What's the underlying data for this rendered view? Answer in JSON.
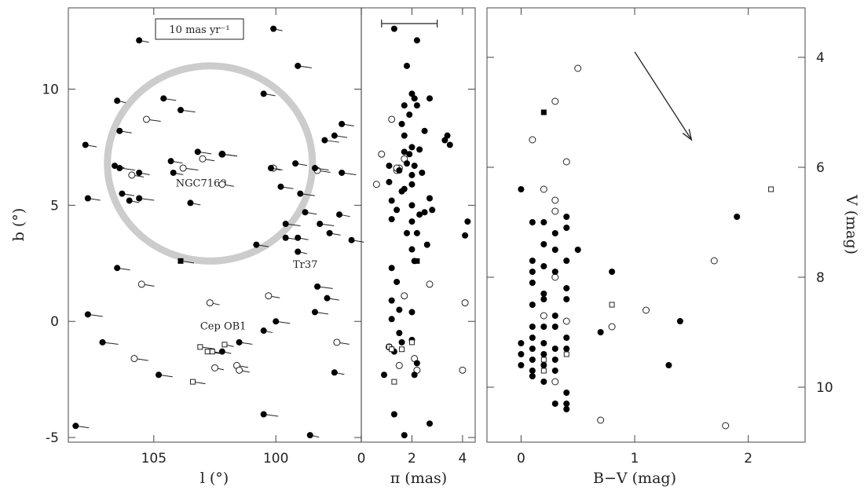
{
  "chart_data": [
    {
      "type": "scatter",
      "panel": "sky",
      "xlabel": "l (°)",
      "ylabel": "b (°)",
      "xlim": [
        108.5,
        96.5
      ],
      "ylim": [
        -5.2,
        13.5
      ],
      "xticks": [
        105,
        100
      ],
      "yticks": [
        -5,
        0,
        5,
        10
      ],
      "scale_bar_label": "10 mas yr⁻¹",
      "circle": {
        "l": 102.7,
        "b": 6.8,
        "r": 4.2
      },
      "annotations": [
        {
          "text": "NGC7160",
          "l": 104.1,
          "b": 5.8
        },
        {
          "text": "Tr37",
          "l": 99.3,
          "b": 2.3
        },
        {
          "text": "Cep OB1",
          "l": 103.1,
          "b": -0.35
        }
      ],
      "filled_circles": [
        [
          105.6,
          12.1
        ],
        [
          100.1,
          12.6
        ],
        [
          99.1,
          11.0
        ],
        [
          106.5,
          9.5
        ],
        [
          104.6,
          9.6
        ],
        [
          103.9,
          9.1
        ],
        [
          100.5,
          9.8
        ],
        [
          106.4,
          8.2
        ],
        [
          107.8,
          7.6
        ],
        [
          98.0,
          7.8
        ],
        [
          97.3,
          8.5
        ],
        [
          97.6,
          8.0
        ],
        [
          103.2,
          7.3
        ],
        [
          104.3,
          6.9
        ],
        [
          102.2,
          7.2
        ],
        [
          106.6,
          6.7
        ],
        [
          106.4,
          6.6
        ],
        [
          105.6,
          6.4
        ],
        [
          104.2,
          6.4
        ],
        [
          100.2,
          6.6
        ],
        [
          99.2,
          6.8
        ],
        [
          98.4,
          6.6
        ],
        [
          97.3,
          6.4
        ],
        [
          107.7,
          5.3
        ],
        [
          106.3,
          5.5
        ],
        [
          106.0,
          5.2
        ],
        [
          105.6,
          5.3
        ],
        [
          103.5,
          5.1
        ],
        [
          99.8,
          5.8
        ],
        [
          99.0,
          5.5
        ],
        [
          97.4,
          4.6
        ],
        [
          97.8,
          3.8
        ],
        [
          96.9,
          3.5
        ],
        [
          98.8,
          4.7
        ],
        [
          98.2,
          4.2
        ],
        [
          99.6,
          4.2
        ],
        [
          99.6,
          3.6
        ],
        [
          99.1,
          3.6
        ],
        [
          99.1,
          3.0
        ],
        [
          100.8,
          3.3
        ],
        [
          106.5,
          2.3
        ],
        [
          98.3,
          1.5
        ],
        [
          97.9,
          1.0
        ],
        [
          107.7,
          0.3
        ],
        [
          100.0,
          0.0
        ],
        [
          98.4,
          0.4
        ],
        [
          107.1,
          -0.9
        ],
        [
          100.5,
          -0.4
        ],
        [
          101.5,
          -0.9
        ],
        [
          102.2,
          -1.3
        ],
        [
          97.6,
          -2.2
        ],
        [
          104.8,
          -2.3
        ],
        [
          100.5,
          -4.0
        ],
        [
          108.2,
          -4.5
        ],
        [
          98.6,
          -4.9
        ]
      ],
      "open_circles": [
        [
          105.3,
          8.7
        ],
        [
          105.9,
          6.3
        ],
        [
          103.8,
          6.6
        ],
        [
          102.2,
          7.2
        ],
        [
          103.0,
          7.0
        ],
        [
          100.1,
          6.6
        ],
        [
          98.3,
          6.5
        ],
        [
          102.2,
          5.9
        ],
        [
          105.5,
          1.6
        ],
        [
          102.7,
          0.8
        ],
        [
          100.3,
          1.1
        ],
        [
          97.5,
          -0.9
        ],
        [
          105.8,
          -1.6
        ],
        [
          101.6,
          -1.9
        ],
        [
          102.5,
          -2.0
        ],
        [
          101.5,
          -2.1
        ]
      ],
      "filled_squares": [
        [
          103.9,
          2.6
        ]
      ],
      "open_squares": [
        [
          103.1,
          -1.1
        ],
        [
          102.8,
          -1.3
        ],
        [
          102.6,
          -1.3
        ],
        [
          102.1,
          -1.0
        ],
        [
          103.4,
          -2.6
        ]
      ]
    },
    {
      "type": "scatter",
      "panel": "parallax",
      "xlabel": "π (mas)",
      "xlim": [
        0,
        4.5
      ],
      "xticks": [
        0,
        2,
        4
      ],
      "errorbar": [
        0.8,
        3.0
      ],
      "filled_circles": [
        [
          1.3,
          12.6
        ],
        [
          2.2,
          12.1
        ],
        [
          1.8,
          11.0
        ],
        [
          2.0,
          9.8
        ],
        [
          2.1,
          9.6
        ],
        [
          2.7,
          9.6
        ],
        [
          1.7,
          9.3
        ],
        [
          2.2,
          9.3
        ],
        [
          1.9,
          8.9
        ],
        [
          1.6,
          8.5
        ],
        [
          2.5,
          8.2
        ],
        [
          1.7,
          8.0
        ],
        [
          2.0,
          7.5
        ],
        [
          3.3,
          7.8
        ],
        [
          3.4,
          8.0
        ],
        [
          3.5,
          7.6
        ],
        [
          1.9,
          7.2
        ],
        [
          2.3,
          7.4
        ],
        [
          1.7,
          7.3
        ],
        [
          1.8,
          6.8
        ],
        [
          1.1,
          6.7
        ],
        [
          2.4,
          6.4
        ],
        [
          2.1,
          6.7
        ],
        [
          2.0,
          6.3
        ],
        [
          1.5,
          6.5
        ],
        [
          1.1,
          6.0
        ],
        [
          1.7,
          5.7
        ],
        [
          2.0,
          5.9
        ],
        [
          1.6,
          5.6
        ],
        [
          1.2,
          5.2
        ],
        [
          2.7,
          5.3
        ],
        [
          2.0,
          5.0
        ],
        [
          1.4,
          4.8
        ],
        [
          2.3,
          4.6
        ],
        [
          2.5,
          4.7
        ],
        [
          2.8,
          4.8
        ],
        [
          1.2,
          4.4
        ],
        [
          2.0,
          4.3
        ],
        [
          4.2,
          4.3
        ],
        [
          1.8,
          3.8
        ],
        [
          2.2,
          3.8
        ],
        [
          4.1,
          3.7
        ],
        [
          2.6,
          3.3
        ],
        [
          2.0,
          3.1
        ],
        [
          2.1,
          2.6
        ],
        [
          1.2,
          2.3
        ],
        [
          1.4,
          1.7
        ],
        [
          1.2,
          0.9
        ],
        [
          1.5,
          0.5
        ],
        [
          2.0,
          0.4
        ],
        [
          1.2,
          0.1
        ],
        [
          1.5,
          -0.5
        ],
        [
          2.0,
          -0.8
        ],
        [
          1.6,
          -0.9
        ],
        [
          1.3,
          -1.3
        ],
        [
          2.2,
          -1.8
        ],
        [
          2.1,
          -2.3
        ],
        [
          2.7,
          -4.4
        ],
        [
          0.9,
          -2.3
        ],
        [
          1.3,
          -4.0
        ],
        [
          1.7,
          -4.9
        ]
      ],
      "open_circles": [
        [
          1.2,
          8.7
        ],
        [
          0.8,
          7.2
        ],
        [
          1.7,
          7.0
        ],
        [
          1.5,
          6.6
        ],
        [
          1.4,
          6.5
        ],
        [
          1.4,
          6.6
        ],
        [
          0.6,
          5.9
        ],
        [
          2.7,
          1.6
        ],
        [
          1.7,
          1.1
        ],
        [
          4.1,
          0.8
        ],
        [
          1.5,
          -1.9
        ],
        [
          2.1,
          -1.6
        ],
        [
          2.2,
          -2.1
        ],
        [
          4.0,
          -2.1
        ],
        [
          1.1,
          -1.1
        ]
      ],
      "filled_squares": [
        [
          2.2,
          2.6
        ]
      ],
      "open_squares": [
        [
          1.1,
          -1.1
        ],
        [
          1.2,
          -1.2
        ],
        [
          1.6,
          -1.2
        ],
        [
          2.0,
          -0.9
        ],
        [
          1.3,
          -2.6
        ]
      ]
    },
    {
      "type": "scatter",
      "panel": "cmd",
      "xlabel": "B−V (mag)",
      "ylabel": "V (mag)",
      "xlim": [
        -0.3,
        2.5
      ],
      "ylim": [
        11.0,
        3.1
      ],
      "xticks": [
        0,
        1,
        2
      ],
      "yticks": [
        4,
        6,
        8,
        10
      ],
      "reddening_arrow": {
        "from": [
          1.0,
          3.9
        ],
        "to": [
          1.5,
          5.5
        ]
      },
      "filled_circles": [
        [
          0.0,
          6.4
        ],
        [
          0.4,
          6.9
        ],
        [
          0.1,
          7.0
        ],
        [
          0.2,
          7.0
        ],
        [
          0.3,
          7.2
        ],
        [
          0.4,
          7.1
        ],
        [
          0.2,
          7.4
        ],
        [
          0.3,
          7.5
        ],
        [
          0.5,
          7.5
        ],
        [
          0.1,
          7.7
        ],
        [
          0.4,
          7.7
        ],
        [
          0.2,
          7.8
        ],
        [
          0.1,
          7.9
        ],
        [
          0.3,
          7.9
        ],
        [
          0.1,
          8.1
        ],
        [
          0.4,
          8.2
        ],
        [
          0.2,
          8.3
        ],
        [
          0.4,
          8.4
        ],
        [
          0.1,
          8.5
        ],
        [
          0.2,
          8.4
        ],
        [
          0.3,
          8.7
        ],
        [
          0.1,
          8.9
        ],
        [
          0.2,
          8.9
        ],
        [
          0.3,
          8.9
        ],
        [
          0.1,
          9.1
        ],
        [
          0.4,
          9.1
        ],
        [
          0.0,
          9.2
        ],
        [
          0.2,
          9.2
        ],
        [
          0.3,
          9.3
        ],
        [
          0.1,
          9.3
        ],
        [
          0.4,
          9.3
        ],
        [
          0.0,
          9.4
        ],
        [
          0.2,
          9.4
        ],
        [
          0.3,
          9.5
        ],
        [
          0.1,
          9.5
        ],
        [
          0.0,
          9.6
        ],
        [
          0.2,
          9.6
        ],
        [
          0.1,
          9.7
        ],
        [
          0.3,
          9.7
        ],
        [
          0.1,
          9.8
        ],
        [
          0.2,
          9.9
        ],
        [
          0.4,
          10.1
        ],
        [
          0.3,
          10.3
        ],
        [
          0.4,
          10.3
        ],
        [
          0.4,
          10.4
        ],
        [
          0.8,
          7.9
        ],
        [
          0.7,
          9.0
        ],
        [
          1.3,
          9.6
        ],
        [
          1.4,
          8.8
        ],
        [
          1.9,
          6.9
        ]
      ],
      "open_circles": [
        [
          0.5,
          4.2
        ],
        [
          0.3,
          4.8
        ],
        [
          0.1,
          5.5
        ],
        [
          0.4,
          5.9
        ],
        [
          0.2,
          6.4
        ],
        [
          0.3,
          6.6
        ],
        [
          0.3,
          6.8
        ],
        [
          0.3,
          8.0
        ],
        [
          0.2,
          8.7
        ],
        [
          0.4,
          8.8
        ],
        [
          0.8,
          8.9
        ],
        [
          1.1,
          8.6
        ],
        [
          1.7,
          7.7
        ],
        [
          0.3,
          9.9
        ],
        [
          0.7,
          10.6
        ],
        [
          1.8,
          10.7
        ]
      ],
      "filled_squares": [
        [
          0.2,
          5.0
        ]
      ],
      "open_squares": [
        [
          0.8,
          8.5
        ],
        [
          0.4,
          9.4
        ],
        [
          0.2,
          9.5
        ],
        [
          0.2,
          9.7
        ],
        [
          2.2,
          6.4
        ]
      ]
    }
  ]
}
